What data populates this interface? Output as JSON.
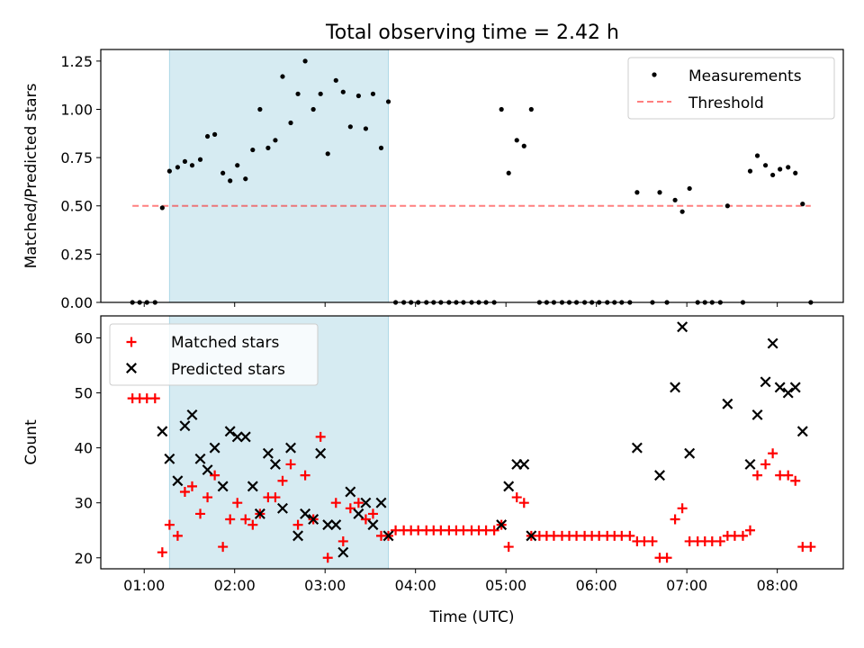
{
  "title": "Total observing time = 2.42 h",
  "colors": {
    "shade": "#add8e6",
    "measurement": "#000000",
    "threshold": "#ff0000",
    "matched": "#ff0000",
    "predicted": "#000000"
  },
  "chart_data": [
    {
      "type": "scatter",
      "ylabel": "Matched/Predicted stars",
      "ylim": [
        0,
        1.31
      ],
      "xlim": [
        0.52,
        8.73
      ],
      "yticks": [
        0,
        0.25,
        0.5,
        0.75,
        1.0,
        1.25
      ],
      "ytick_labels": [
        "0.00",
        "0.25",
        "0.50",
        "0.75",
        "1.00",
        "1.25"
      ],
      "shaded_span": [
        1.28,
        3.7
      ],
      "legend": {
        "position": "upper right",
        "entries": [
          "Measurements",
          "Threshold"
        ]
      },
      "threshold": {
        "name": "Threshold",
        "y": 0.5,
        "x_range": [
          0.87,
          8.37
        ],
        "style": "dashed"
      },
      "series": [
        {
          "name": "Measurements",
          "marker": "dot",
          "points": [
            [
              0.87,
              0
            ],
            [
              0.95,
              0
            ],
            [
              1.03,
              0
            ],
            [
              1.12,
              0
            ],
            [
              1.2,
              0.49
            ],
            [
              1.28,
              0.68
            ],
            [
              1.37,
              0.7
            ],
            [
              1.45,
              0.73
            ],
            [
              1.53,
              0.71
            ],
            [
              1.62,
              0.74
            ],
            [
              1.7,
              0.86
            ],
            [
              1.78,
              0.87
            ],
            [
              1.87,
              0.67
            ],
            [
              1.95,
              0.63
            ],
            [
              2.03,
              0.71
            ],
            [
              2.12,
              0.64
            ],
            [
              2.2,
              0.79
            ],
            [
              2.28,
              1.0
            ],
            [
              2.37,
              0.8
            ],
            [
              2.45,
              0.84
            ],
            [
              2.53,
              1.17
            ],
            [
              2.62,
              0.93
            ],
            [
              2.7,
              1.08
            ],
            [
              2.78,
              1.25
            ],
            [
              2.87,
              1.0
            ],
            [
              2.95,
              1.08
            ],
            [
              3.03,
              0.77
            ],
            [
              3.12,
              1.15
            ],
            [
              3.2,
              1.09
            ],
            [
              3.28,
              0.91
            ],
            [
              3.37,
              1.07
            ],
            [
              3.45,
              0.9
            ],
            [
              3.53,
              1.08
            ],
            [
              3.62,
              0.8
            ],
            [
              3.7,
              1.04
            ],
            [
              3.78,
              0
            ],
            [
              3.87,
              0
            ],
            [
              3.95,
              0
            ],
            [
              4.03,
              0
            ],
            [
              4.12,
              0
            ],
            [
              4.2,
              0
            ],
            [
              4.28,
              0
            ],
            [
              4.37,
              0
            ],
            [
              4.45,
              0
            ],
            [
              4.53,
              0
            ],
            [
              4.62,
              0
            ],
            [
              4.7,
              0
            ],
            [
              4.78,
              0
            ],
            [
              4.87,
              0
            ],
            [
              4.95,
              1.0
            ],
            [
              5.03,
              0.67
            ],
            [
              5.12,
              0.84
            ],
            [
              5.2,
              0.81
            ],
            [
              5.28,
              1.0
            ],
            [
              5.37,
              0
            ],
            [
              5.45,
              0
            ],
            [
              5.53,
              0
            ],
            [
              5.62,
              0
            ],
            [
              5.7,
              0
            ],
            [
              5.78,
              0
            ],
            [
              5.87,
              0
            ],
            [
              5.95,
              0
            ],
            [
              6.03,
              0
            ],
            [
              6.12,
              0
            ],
            [
              6.2,
              0
            ],
            [
              6.28,
              0
            ],
            [
              6.37,
              0
            ],
            [
              6.45,
              0.57
            ],
            [
              6.62,
              0
            ],
            [
              6.7,
              0.57
            ],
            [
              6.78,
              0
            ],
            [
              6.87,
              0.53
            ],
            [
              6.95,
              0.47
            ],
            [
              7.03,
              0.59
            ],
            [
              7.12,
              0
            ],
            [
              7.2,
              0
            ],
            [
              7.28,
              0
            ],
            [
              7.37,
              0
            ],
            [
              7.45,
              0.5
            ],
            [
              7.62,
              0
            ],
            [
              7.7,
              0.68
            ],
            [
              7.78,
              0.76
            ],
            [
              7.87,
              0.71
            ],
            [
              7.95,
              0.66
            ],
            [
              8.03,
              0.69
            ],
            [
              8.12,
              0.7
            ],
            [
              8.2,
              0.67
            ],
            [
              8.28,
              0.51
            ],
            [
              8.37,
              0
            ]
          ]
        }
      ]
    },
    {
      "type": "scatter",
      "ylabel": "Count",
      "xlabel": "Time (UTC)",
      "ylim": [
        18,
        64
      ],
      "xlim": [
        0.52,
        8.73
      ],
      "yticks": [
        20,
        30,
        40,
        50,
        60
      ],
      "ytick_labels": [
        "20",
        "30",
        "40",
        "50",
        "60"
      ],
      "xticks": [
        1,
        2,
        3,
        4,
        5,
        6,
        7,
        8
      ],
      "xtick_labels": [
        "01:00",
        "02:00",
        "03:00",
        "04:00",
        "05:00",
        "06:00",
        "07:00",
        "08:00"
      ],
      "shaded_span": [
        1.28,
        3.7
      ],
      "legend": {
        "position": "upper left",
        "entries": [
          "Matched stars",
          "Predicted stars"
        ]
      },
      "series": [
        {
          "name": "Matched stars",
          "marker": "plus",
          "points": [
            [
              0.87,
              49
            ],
            [
              0.95,
              49
            ],
            [
              1.03,
              49
            ],
            [
              1.12,
              49
            ],
            [
              1.2,
              21
            ],
            [
              1.28,
              26
            ],
            [
              1.37,
              24
            ],
            [
              1.45,
              32
            ],
            [
              1.53,
              33
            ],
            [
              1.62,
              28
            ],
            [
              1.7,
              31
            ],
            [
              1.78,
              35
            ],
            [
              1.87,
              22
            ],
            [
              1.95,
              27
            ],
            [
              2.03,
              30
            ],
            [
              2.12,
              27
            ],
            [
              2.2,
              26
            ],
            [
              2.28,
              28
            ],
            [
              2.37,
              31
            ],
            [
              2.45,
              31
            ],
            [
              2.53,
              34
            ],
            [
              2.62,
              37
            ],
            [
              2.7,
              26
            ],
            [
              2.78,
              35
            ],
            [
              2.87,
              27
            ],
            [
              2.95,
              42
            ],
            [
              3.03,
              20
            ],
            [
              3.12,
              30
            ],
            [
              3.2,
              23
            ],
            [
              3.28,
              29
            ],
            [
              3.37,
              30
            ],
            [
              3.45,
              27
            ],
            [
              3.53,
              28
            ],
            [
              3.62,
              24
            ],
            [
              3.7,
              24
            ],
            [
              3.78,
              25
            ],
            [
              3.87,
              25
            ],
            [
              3.95,
              25
            ],
            [
              4.03,
              25
            ],
            [
              4.12,
              25
            ],
            [
              4.2,
              25
            ],
            [
              4.28,
              25
            ],
            [
              4.37,
              25
            ],
            [
              4.45,
              25
            ],
            [
              4.53,
              25
            ],
            [
              4.62,
              25
            ],
            [
              4.7,
              25
            ],
            [
              4.78,
              25
            ],
            [
              4.87,
              25
            ],
            [
              4.95,
              26
            ],
            [
              5.03,
              22
            ],
            [
              5.12,
              31
            ],
            [
              5.2,
              30
            ],
            [
              5.28,
              24
            ],
            [
              5.37,
              24
            ],
            [
              5.45,
              24
            ],
            [
              5.53,
              24
            ],
            [
              5.62,
              24
            ],
            [
              5.7,
              24
            ],
            [
              5.78,
              24
            ],
            [
              5.87,
              24
            ],
            [
              5.95,
              24
            ],
            [
              6.03,
              24
            ],
            [
              6.12,
              24
            ],
            [
              6.2,
              24
            ],
            [
              6.28,
              24
            ],
            [
              6.37,
              24
            ],
            [
              6.45,
              23
            ],
            [
              6.53,
              23
            ],
            [
              6.62,
              23
            ],
            [
              6.7,
              20
            ],
            [
              6.78,
              20
            ],
            [
              6.87,
              27
            ],
            [
              6.95,
              29
            ],
            [
              7.03,
              23
            ],
            [
              7.12,
              23
            ],
            [
              7.2,
              23
            ],
            [
              7.28,
              23
            ],
            [
              7.37,
              23
            ],
            [
              7.45,
              24
            ],
            [
              7.53,
              24
            ],
            [
              7.62,
              24
            ],
            [
              7.7,
              25
            ],
            [
              7.78,
              35
            ],
            [
              7.87,
              37
            ],
            [
              7.95,
              39
            ],
            [
              8.03,
              35
            ],
            [
              8.12,
              35
            ],
            [
              8.2,
              34
            ],
            [
              8.28,
              22
            ],
            [
              8.37,
              22
            ]
          ]
        },
        {
          "name": "Predicted stars",
          "marker": "x",
          "points": [
            [
              1.2,
              43
            ],
            [
              1.28,
              38
            ],
            [
              1.37,
              34
            ],
            [
              1.45,
              44
            ],
            [
              1.53,
              46
            ],
            [
              1.62,
              38
            ],
            [
              1.7,
              36
            ],
            [
              1.78,
              40
            ],
            [
              1.87,
              33
            ],
            [
              1.95,
              43
            ],
            [
              2.03,
              42
            ],
            [
              2.12,
              42
            ],
            [
              2.2,
              33
            ],
            [
              2.28,
              28
            ],
            [
              2.37,
              39
            ],
            [
              2.45,
              37
            ],
            [
              2.53,
              29
            ],
            [
              2.62,
              40
            ],
            [
              2.7,
              24
            ],
            [
              2.78,
              28
            ],
            [
              2.87,
              27
            ],
            [
              2.95,
              39
            ],
            [
              3.03,
              26
            ],
            [
              3.12,
              26
            ],
            [
              3.2,
              21
            ],
            [
              3.28,
              32
            ],
            [
              3.37,
              28
            ],
            [
              3.45,
              30
            ],
            [
              3.53,
              26
            ],
            [
              3.62,
              30
            ],
            [
              3.7,
              24
            ],
            [
              4.95,
              26
            ],
            [
              5.03,
              33
            ],
            [
              5.12,
              37
            ],
            [
              5.2,
              37
            ],
            [
              5.28,
              24
            ],
            [
              6.45,
              40
            ],
            [
              6.7,
              35
            ],
            [
              6.87,
              51
            ],
            [
              6.95,
              62
            ],
            [
              7.03,
              39
            ],
            [
              7.45,
              48
            ],
            [
              7.7,
              37
            ],
            [
              7.78,
              46
            ],
            [
              7.87,
              52
            ],
            [
              7.95,
              59
            ],
            [
              8.03,
              51
            ],
            [
              8.12,
              50
            ],
            [
              8.2,
              51
            ],
            [
              8.28,
              43
            ]
          ]
        }
      ]
    }
  ]
}
